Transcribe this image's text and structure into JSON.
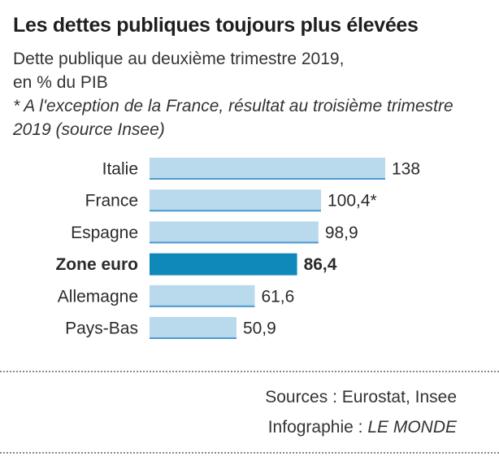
{
  "title": "Les dettes publiques toujours plus élevées",
  "subtitle_line1": "Dette publique au deuxième trimestre 2019,",
  "subtitle_line2": "en % du PIB",
  "note": "* A l'exception de la France, résultat au troisième trimestre 2019 (source Insee)",
  "sources": "Sources : Eurostat, Insee",
  "credit_prefix": "Infographie : ",
  "credit_name": "LE MONDE",
  "colors": {
    "bar": "#b9d9ed",
    "bar_edge": "#4d9ad0",
    "highlight": "#0f89b9"
  },
  "chart_data": {
    "type": "bar",
    "orientation": "horizontal",
    "categories": [
      "Italie",
      "France",
      "Espagne",
      "Zone euro",
      "Allemagne",
      "Pays-Bas"
    ],
    "values": [
      138,
      100.4,
      98.9,
      86.4,
      61.6,
      50.9
    ],
    "value_labels": [
      "138",
      "100,4*",
      "98,9",
      "86,4",
      "61,6",
      "50,9"
    ],
    "highlight": "Zone euro"
  }
}
